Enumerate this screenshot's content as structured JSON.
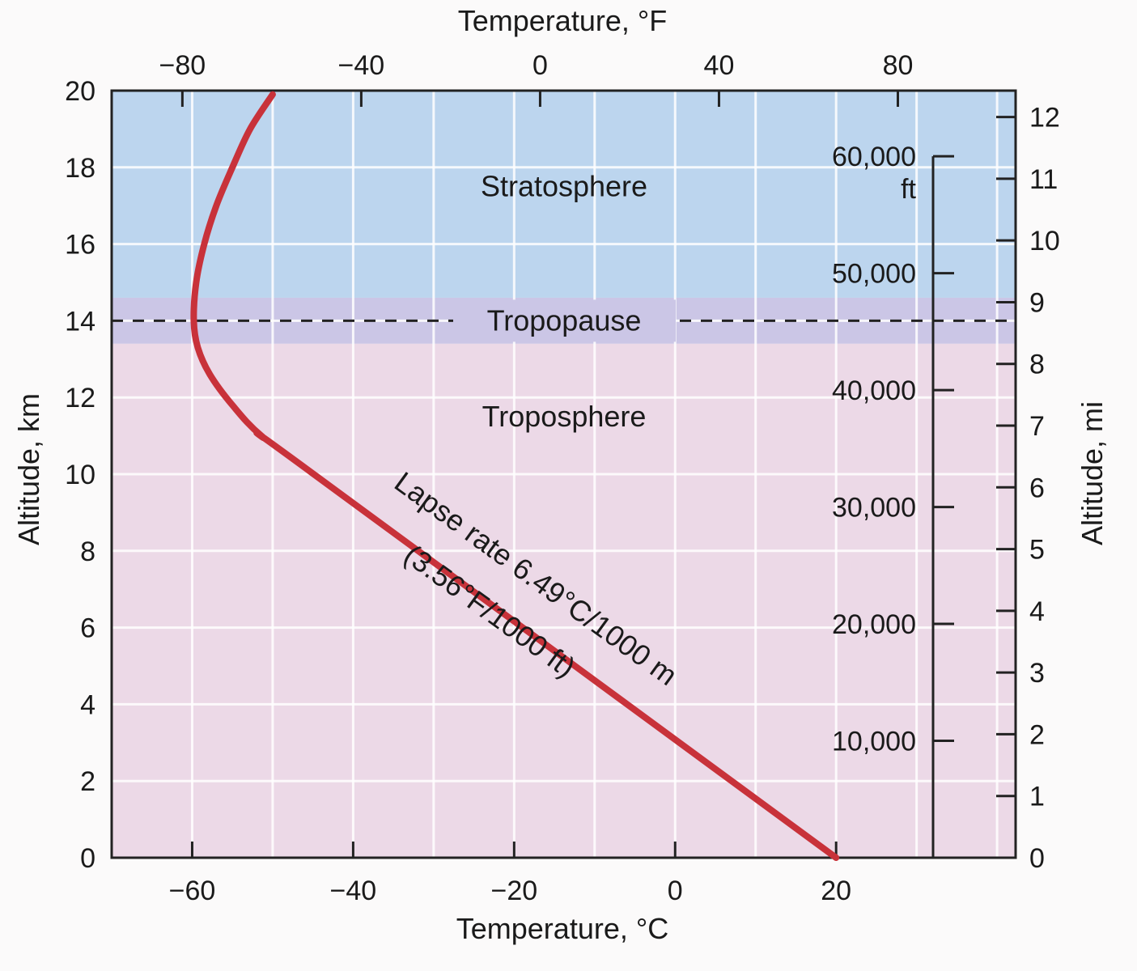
{
  "chart_data": {
    "type": "line",
    "title": "",
    "xlabel": "Temperature, °C",
    "x2label": "Temperature, °F",
    "ylabel": "Altitude, km",
    "y2label": "Altitude, mi",
    "xlim": [
      -70,
      42.3
    ],
    "ylim": [
      0,
      20
    ],
    "x_ticks": [
      -60,
      -40,
      -20,
      0,
      20
    ],
    "x2_ticks": [
      -80,
      -40,
      0,
      40,
      80
    ],
    "y_ticks": [
      0,
      2,
      4,
      6,
      8,
      10,
      12,
      14,
      16,
      18,
      20
    ],
    "y2_ticks_mi": [
      0,
      1,
      2,
      3,
      4,
      5,
      6,
      7,
      8,
      9,
      10,
      11,
      12
    ],
    "ft_ticks": [
      {
        "value": 10000,
        "label": "10,000"
      },
      {
        "value": 20000,
        "label": "20,000"
      },
      {
        "value": 30000,
        "label": "30,000"
      },
      {
        "value": 40000,
        "label": "40,000"
      },
      {
        "value": 50000,
        "label": "50,000"
      },
      {
        "value": 60000,
        "label": "60,000"
      }
    ],
    "ft_unit": "ft",
    "grid": true,
    "series": [
      {
        "color": "#c8323a",
        "points": [
          [
            20,
            0
          ],
          [
            -44.9,
            10
          ],
          [
            -51.4,
            11
          ],
          [
            -55,
            11.8
          ],
          [
            -57.8,
            12.6
          ],
          [
            -59.3,
            13.3
          ],
          [
            -59.8,
            14
          ],
          [
            -59.5,
            15
          ],
          [
            -58.5,
            16
          ],
          [
            -57,
            17
          ],
          [
            -55,
            18
          ],
          [
            -52.8,
            19
          ],
          [
            -50,
            19.9
          ]
        ]
      }
    ],
    "regions": [
      {
        "label": "Stratosphere",
        "from": 14.6,
        "to": 20,
        "color": "#bcd5ee"
      },
      {
        "label": "Tropopause",
        "from": 13.4,
        "to": 14.6,
        "color": "#cbc6e6",
        "line_at": 14
      },
      {
        "label": "Troposphere",
        "from": 0,
        "to": 13.4,
        "color": "#ecd9e7"
      }
    ],
    "annotations": [
      "Lapse rate 6.49°C/1000 m",
      "(3.56°F/1000 ft)"
    ]
  }
}
